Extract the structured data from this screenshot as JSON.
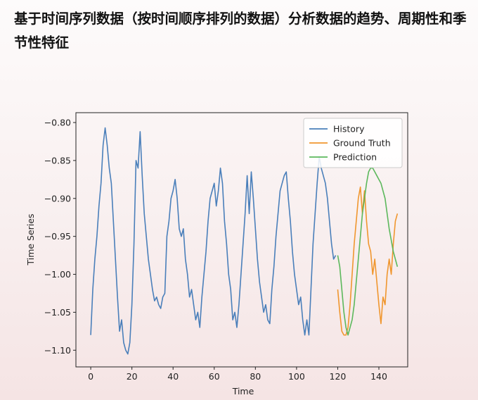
{
  "chart_data": {
    "type": "line",
    "title": "基于时间序列数据（按时间顺序排列的数据）分析数据的趋势、周期性和季节性特征",
    "xlabel": "Time",
    "ylabel": "Time Series",
    "xlim": [
      -7.2,
      154
    ],
    "ylim": [
      -1.122,
      -0.787
    ],
    "xticks": [
      0,
      20,
      40,
      60,
      80,
      100,
      120,
      140
    ],
    "yticks": [
      {
        "value": -0.8,
        "label": "−0.80"
      },
      {
        "value": -0.85,
        "label": "−0.85"
      },
      {
        "value": -0.9,
        "label": "−0.90"
      },
      {
        "value": -0.95,
        "label": "−0.95"
      },
      {
        "value": -1.0,
        "label": "−1.00"
      },
      {
        "value": -1.05,
        "label": "−1.05"
      },
      {
        "value": -1.1,
        "label": "−1.10"
      }
    ],
    "legend": "upper right",
    "grid": false,
    "series": [
      {
        "name": "History",
        "color": "#4a7fba",
        "x": [
          0,
          1,
          2,
          3,
          4,
          5,
          6,
          7,
          8,
          9,
          10,
          11,
          12,
          13,
          14,
          15,
          16,
          17,
          18,
          19,
          20,
          21,
          22,
          23,
          24,
          25,
          26,
          27,
          28,
          29,
          30,
          31,
          32,
          33,
          34,
          35,
          36,
          37,
          38,
          39,
          40,
          41,
          42,
          43,
          44,
          45,
          46,
          47,
          48,
          49,
          50,
          51,
          52,
          53,
          54,
          55,
          56,
          57,
          58,
          59,
          60,
          61,
          62,
          63,
          64,
          65,
          66,
          67,
          68,
          69,
          70,
          71,
          72,
          73,
          74,
          75,
          76,
          77,
          78,
          79,
          80,
          81,
          82,
          83,
          84,
          85,
          86,
          87,
          88,
          89,
          90,
          91,
          92,
          93,
          94,
          95,
          96,
          97,
          98,
          99,
          100,
          101,
          102,
          103,
          104,
          105,
          106,
          107,
          108,
          109,
          110,
          111,
          112,
          113,
          114,
          115,
          116,
          117,
          118,
          119
        ],
        "values": [
          -1.08,
          -1.02,
          -0.98,
          -0.95,
          -0.91,
          -0.88,
          -0.83,
          -0.807,
          -0.83,
          -0.86,
          -0.88,
          -0.93,
          -0.98,
          -1.03,
          -1.075,
          -1.06,
          -1.09,
          -1.1,
          -1.105,
          -1.09,
          -1.04,
          -0.96,
          -0.85,
          -0.86,
          -0.812,
          -0.87,
          -0.92,
          -0.95,
          -0.98,
          -1.0,
          -1.02,
          -1.035,
          -1.03,
          -1.04,
          -1.045,
          -1.03,
          -1.025,
          -0.95,
          -0.93,
          -0.9,
          -0.89,
          -0.875,
          -0.9,
          -0.94,
          -0.95,
          -0.94,
          -0.98,
          -1.0,
          -1.03,
          -1.02,
          -1.04,
          -1.06,
          -1.05,
          -1.07,
          -1.03,
          -1.0,
          -0.97,
          -0.93,
          -0.9,
          -0.89,
          -0.88,
          -0.91,
          -0.89,
          -0.86,
          -0.88,
          -0.93,
          -0.96,
          -1.0,
          -1.02,
          -1.06,
          -1.05,
          -1.07,
          -1.04,
          -1.0,
          -0.96,
          -0.92,
          -0.87,
          -0.92,
          -0.865,
          -0.9,
          -0.94,
          -0.98,
          -1.01,
          -1.03,
          -1.05,
          -1.04,
          -1.06,
          -1.065,
          -1.02,
          -0.99,
          -0.95,
          -0.92,
          -0.89,
          -0.88,
          -0.87,
          -0.865,
          -0.9,
          -0.93,
          -0.97,
          -1.0,
          -1.02,
          -1.04,
          -1.03,
          -1.06,
          -1.08,
          -1.06,
          -1.08,
          -1.02,
          -0.96,
          -0.92,
          -0.88,
          -0.845,
          -0.86,
          -0.87,
          -0.88,
          -0.9,
          -0.93,
          -0.96,
          -0.98,
          -0.975
        ]
      },
      {
        "name": "Ground Truth",
        "color": "#f0962e",
        "x": [
          120,
          121,
          122,
          123,
          124,
          125,
          126,
          127,
          128,
          129,
          130,
          131,
          132,
          133,
          134,
          135,
          136,
          137,
          138,
          139,
          140,
          141,
          142,
          143,
          144,
          145,
          146,
          147,
          148,
          149
        ],
        "values": [
          -1.02,
          -1.05,
          -1.075,
          -1.08,
          -1.08,
          -1.07,
          -1.04,
          -1.0,
          -0.96,
          -0.93,
          -0.9,
          -0.885,
          -0.92,
          -0.89,
          -0.93,
          -0.96,
          -0.97,
          -1.0,
          -0.98,
          -1.01,
          -1.04,
          -1.065,
          -1.03,
          -1.04,
          -1.0,
          -0.98,
          -1.0,
          -0.96,
          -0.93,
          -0.92
        ]
      },
      {
        "name": "Prediction",
        "color": "#5cb85c",
        "x": [
          120,
          121,
          122,
          123,
          124,
          125,
          126,
          127,
          128,
          129,
          130,
          131,
          132,
          133,
          134,
          135,
          136,
          137,
          138,
          139,
          140,
          141,
          142,
          143,
          144,
          145,
          146,
          147,
          148,
          149
        ],
        "values": [
          -0.975,
          -0.99,
          -1.02,
          -1.05,
          -1.07,
          -1.08,
          -1.07,
          -1.06,
          -1.04,
          -1.01,
          -0.98,
          -0.95,
          -0.92,
          -0.9,
          -0.88,
          -0.865,
          -0.86,
          -0.86,
          -0.865,
          -0.87,
          -0.875,
          -0.88,
          -0.89,
          -0.9,
          -0.92,
          -0.94,
          -0.955,
          -0.97,
          -0.98,
          -0.99
        ]
      }
    ]
  }
}
